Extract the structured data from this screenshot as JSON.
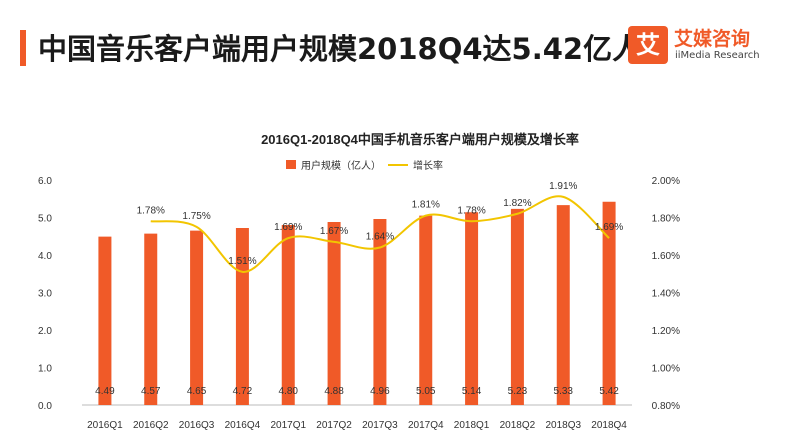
{
  "header": {
    "title": "中国音乐客户端用户规模2018Q4达5.42亿人",
    "logo_mark": "艾",
    "logo_cn": "艾媒咨询",
    "logo_en": "iiMedia Research"
  },
  "colors": {
    "accent": "#f05a28",
    "bar": "#f05a28",
    "line": "#f2c500"
  },
  "chart_data": {
    "type": "bar",
    "title": "2016Q1-2018Q4中国手机音乐客户端用户规模及增长率",
    "categories": [
      "2016Q1",
      "2016Q2",
      "2016Q3",
      "2016Q4",
      "2017Q1",
      "2017Q2",
      "2017Q3",
      "2017Q4",
      "2018Q1",
      "2018Q2",
      "2018Q3",
      "2018Q4"
    ],
    "series": [
      {
        "name": "用户规模（亿人）",
        "type": "bar",
        "axis": "left",
        "values": [
          4.49,
          4.57,
          4.65,
          4.72,
          4.8,
          4.88,
          4.96,
          5.05,
          5.14,
          5.23,
          5.33,
          5.42
        ],
        "labels": [
          "4.49",
          "4.57",
          "4.65",
          "4.72",
          "4.80",
          "4.88",
          "4.96",
          "5.05",
          "5.14",
          "5.23",
          "5.33",
          "5.42"
        ]
      },
      {
        "name": "增长率",
        "type": "line",
        "axis": "right",
        "values": [
          null,
          1.78,
          1.75,
          1.51,
          1.69,
          1.67,
          1.64,
          1.81,
          1.78,
          1.82,
          1.91,
          1.69
        ],
        "labels": [
          "",
          "1.78%",
          "1.75%",
          "1.51%",
          "1.69%",
          "1.67%",
          "1.64%",
          "1.81%",
          "1.78%",
          "1.82%",
          "1.91%",
          "1.69%"
        ]
      }
    ],
    "ylim_left": [
      0,
      6
    ],
    "yticks_left": [
      "0.0",
      "1.0",
      "2.0",
      "3.0",
      "4.0",
      "5.0",
      "6.0"
    ],
    "ylim_right": [
      0.8,
      2.0
    ],
    "yticks_right": [
      "0.80%",
      "1.00%",
      "1.20%",
      "1.40%",
      "1.60%",
      "1.80%",
      "2.00%"
    ],
    "legend": [
      "用户规模（亿人）",
      "增长率"
    ],
    "grid": false
  }
}
